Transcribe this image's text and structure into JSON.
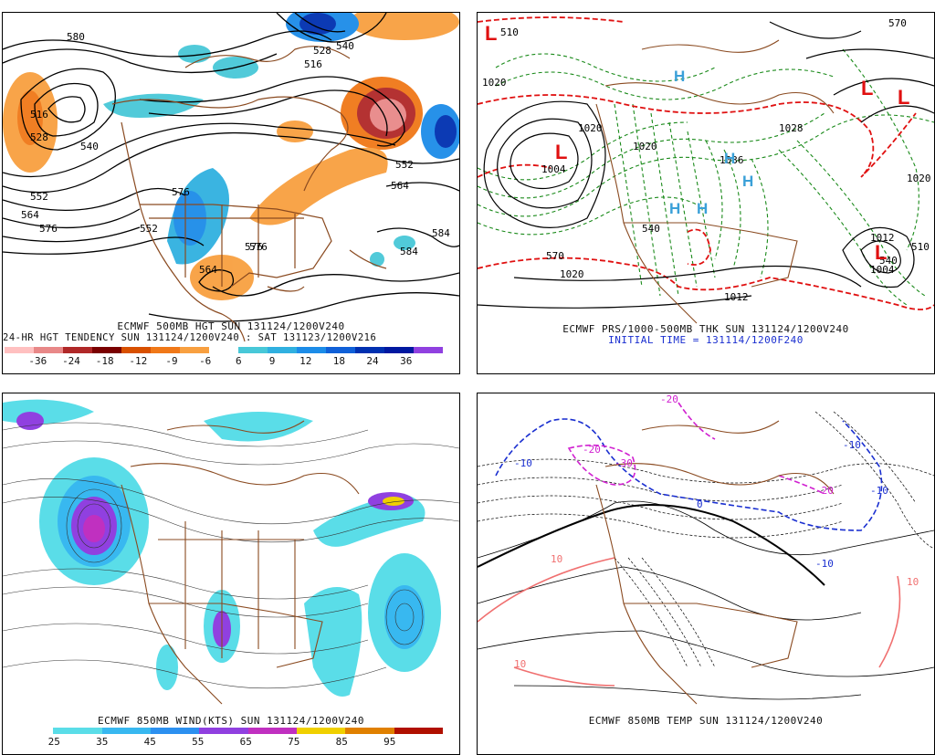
{
  "colors": {
    "tendency_neg": [
      "#ffc0c0",
      "#e88888",
      "#b02828",
      "#7a0000",
      "#d85000",
      "#f07818",
      "#f8a040"
    ],
    "tendency_pos": [
      "#48c8d8",
      "#30b0e0",
      "#1c8ce8",
      "#1060d8",
      "#0030b0",
      "#0018a0"
    ],
    "wind": [
      "#ffffff",
      "#5adde8",
      "#38b8f0",
      "#2c90f0",
      "#9040e0",
      "#c030c0",
      "#f0d000",
      "#e08000",
      "#b01000"
    ]
  },
  "panels": {
    "height_tendency": {
      "caption1": "ECMWF 500MB HGT SUN 131124/1200V240",
      "caption2": "24-HR HGT TENDENCY SUN 131124/1200V240 : SAT 131123/1200V216",
      "colorbar_labels": [
        "-36",
        "-24",
        "-18",
        "-12",
        "-9",
        "-6",
        "6",
        "9",
        "12",
        "18",
        "24",
        "36"
      ],
      "contour_labels": [
        "580",
        "516",
        "528",
        "540",
        "552",
        "564",
        "576",
        "576",
        "576",
        "584",
        "516",
        "528",
        "540",
        "552",
        "564",
        "584",
        "576",
        "564",
        "552"
      ]
    },
    "pressure_thickness": {
      "caption1": "ECMWF PRS/1000-500MB THK SUN 131124/1200V240",
      "caption2": "INITIAL TIME = 131114/1200F240",
      "labels": [
        "510",
        "1020",
        "1020",
        "1028",
        "1020",
        "1036",
        "1012",
        "1004",
        "1020",
        "1004",
        "1020",
        "1012",
        "510",
        "540",
        "570",
        "540",
        "570"
      ],
      "highs": [
        "H",
        "H",
        "H",
        "H",
        "H"
      ],
      "lows": [
        "L",
        "L",
        "L",
        "L",
        "L"
      ]
    },
    "wind": {
      "caption1": "ECMWF 850MB WIND(KTS) SUN 131124/1200V240",
      "colorbar_labels": [
        "25",
        "35",
        "45",
        "55",
        "65",
        "75",
        "85",
        "95"
      ]
    },
    "temperature": {
      "caption1": "ECMWF 850MB TEMP SUN 131124/1200V240",
      "labels": [
        "-20",
        "-10",
        "-10",
        "-10",
        "-20",
        "-20",
        "-30",
        "-10",
        "0",
        "10",
        "10",
        "10"
      ]
    }
  }
}
